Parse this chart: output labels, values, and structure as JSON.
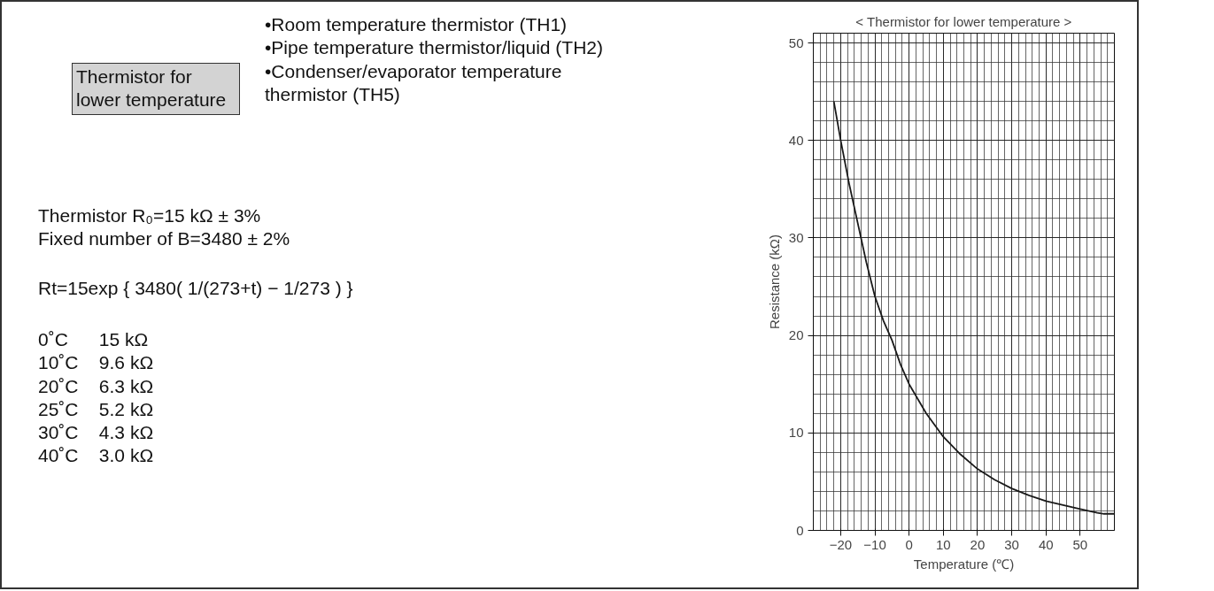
{
  "chart_data": {
    "type": "line",
    "title": "< Thermistor for lower temperature >",
    "xlabel": "Temperature (℃)",
    "ylabel": "Resistance (kΩ)",
    "annotations": [
      "Thermistor for lower temperature",
      "•Room temperature thermistor (TH1)",
      "•Pipe temperature thermistor/liquid (TH2)",
      "•Condenser/evaporator temperature thermistor (TH5)",
      "Thermistor R₀=15 kΩ  ± 3%",
      "Fixed number of B=3480 ± 2%",
      "Rt=15exp { 3480( 1/(273+t) − 1/273 ) }",
      "0˚C      15 kΩ",
      "10˚C    9.6 kΩ",
      "20˚C    6.3 kΩ",
      "25˚C    5.2 kΩ",
      "30˚C    4.3 kΩ",
      "40˚C    3.0 kΩ"
    ],
    "x": [
      -22,
      -20,
      -17.5,
      -15,
      -12.5,
      -10,
      -7.5,
      -5,
      -2.5,
      0,
      5,
      10,
      15,
      20,
      25,
      30,
      35,
      40,
      45,
      50,
      55,
      57,
      60
    ],
    "series": [
      {
        "color": "#1a1a1a",
        "values": [
          44,
          40,
          35.5,
          31.5,
          27.5,
          24,
          21.5,
          19.5,
          17,
          15,
          12,
          9.6,
          7.8,
          6.3,
          5.2,
          4.3,
          3.6,
          3.0,
          2.6,
          2.2,
          1.8,
          1.7,
          1.7
        ]
      }
    ],
    "xlim": [
      -28,
      60
    ],
    "xticks": [
      -20,
      -10,
      0,
      10,
      20,
      30,
      40,
      50
    ],
    "ylim": [
      0,
      51
    ],
    "yticks": [
      0,
      10,
      20,
      30,
      40,
      50
    ],
    "grid": true,
    "marker": "none",
    "line_style": "solid"
  }
}
